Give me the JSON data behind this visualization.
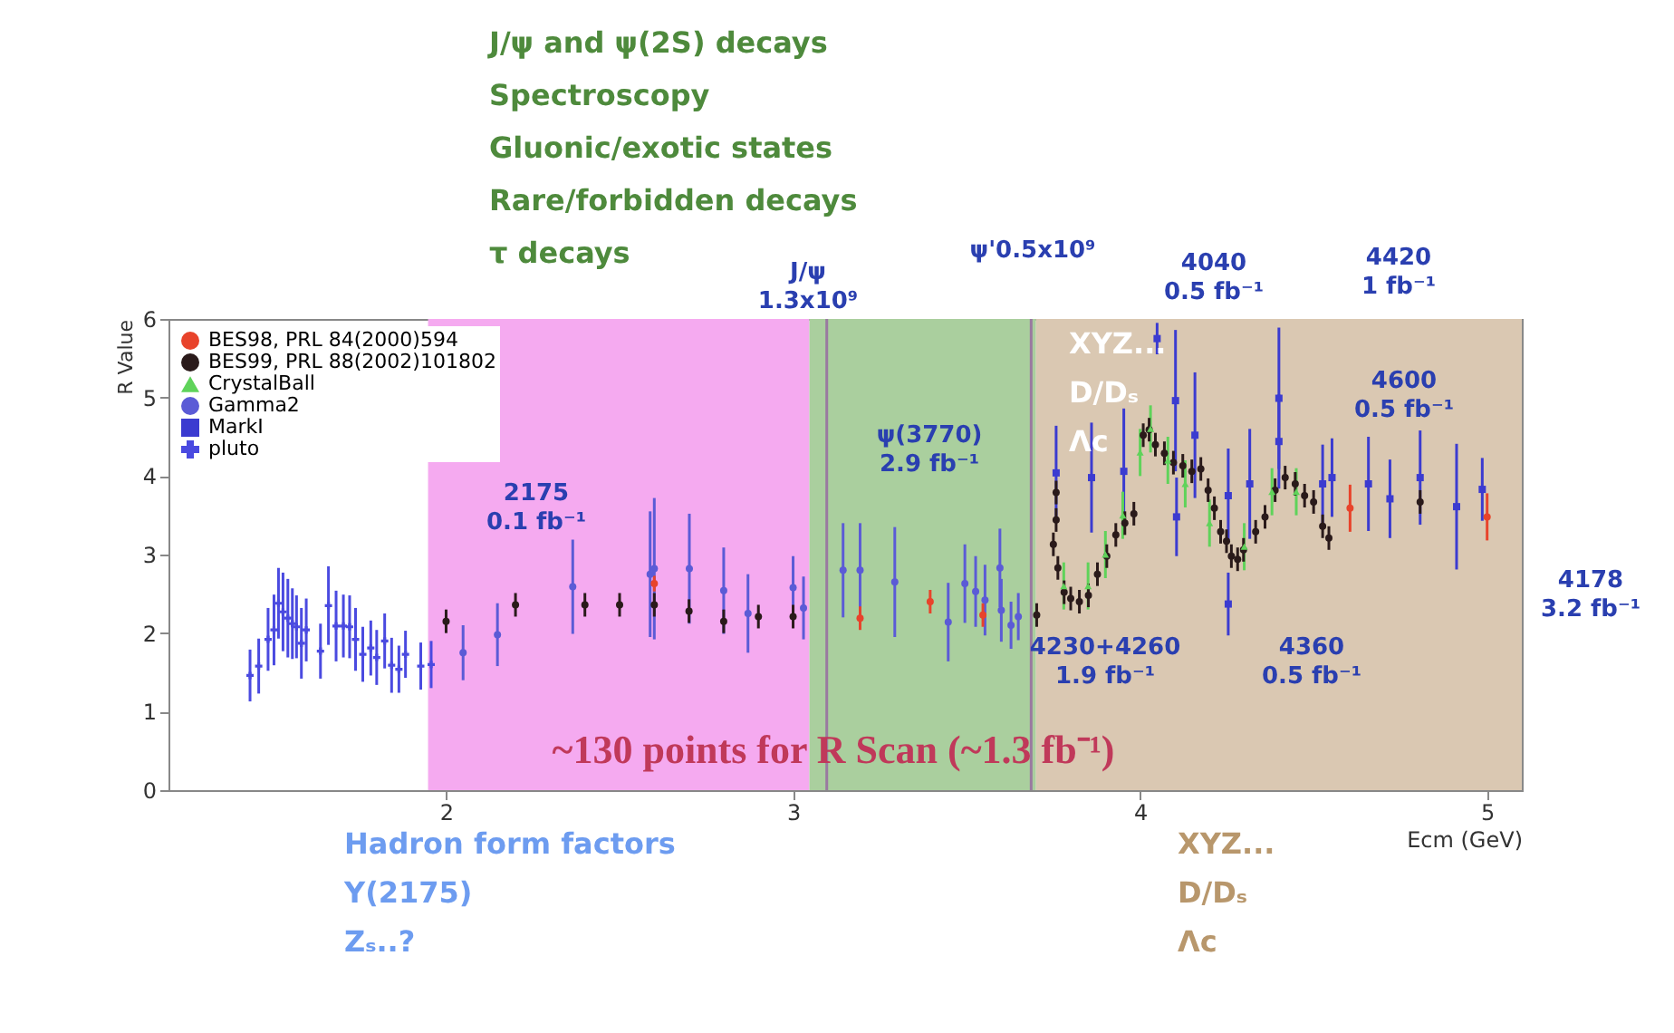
{
  "chart_data": {
    "type": "scatter",
    "xlabel": "Ecm (GeV)",
    "ylabel": "R Value",
    "xlim": [
      1.2,
      5.1
    ],
    "ylim": [
      0,
      6
    ],
    "xticks": [
      2,
      3,
      4,
      5
    ],
    "yticks": [
      0,
      1,
      2,
      3,
      4,
      5,
      6
    ],
    "grid": false,
    "legend": "top left",
    "series": [
      {
        "name": "BES98, PRL 84(2000)594",
        "color": "#e8432b",
        "marker": "circle",
        "x": [
          2.6,
          3.193,
          3.395,
          3.547,
          4.605,
          5.0
        ],
        "values": [
          2.63,
          2.19,
          2.4,
          2.23,
          3.59,
          3.48
        ],
        "errors": [
          0.1,
          0.15,
          0.15,
          0.15,
          0.3,
          0.3
        ]
      },
      {
        "name": "BES99, PRL 88(2002)101802",
        "color": "#2a1a1a",
        "marker": "circle",
        "x": [
          2.0,
          2.2,
          2.4,
          2.5,
          2.6,
          2.7,
          2.8,
          2.9,
          3.0,
          3.702,
          3.75,
          3.758,
          3.758,
          3.763,
          3.781,
          3.8,
          3.825,
          3.851,
          3.877,
          3.904,
          3.93,
          3.956,
          3.982,
          4.009,
          4.026,
          4.044,
          4.07,
          4.096,
          4.123,
          4.149,
          4.175,
          4.196,
          4.214,
          4.232,
          4.249,
          4.263,
          4.281,
          4.298,
          4.333,
          4.36,
          4.389,
          4.418,
          4.447,
          4.474,
          4.5,
          4.526,
          4.544,
          4.807
        ],
        "values": [
          2.15,
          2.36,
          2.36,
          2.36,
          2.36,
          2.28,
          2.15,
          2.21,
          2.21,
          2.23,
          3.13,
          3.79,
          3.44,
          2.83,
          2.52,
          2.44,
          2.4,
          2.48,
          2.75,
          2.98,
          3.25,
          3.4,
          3.52,
          4.52,
          4.59,
          4.4,
          4.29,
          4.17,
          4.13,
          4.06,
          4.09,
          3.82,
          3.59,
          3.29,
          3.17,
          2.98,
          2.94,
          3.06,
          3.29,
          3.48,
          3.82,
          3.98,
          3.9,
          3.75,
          3.67,
          3.36,
          3.21,
          3.67
        ],
        "errors": [
          0.15,
          0.15,
          0.15,
          0.15,
          0.15,
          0.15,
          0.15,
          0.15,
          0.15,
          0.15,
          0.15,
          0.15,
          0.15,
          0.15,
          0.15,
          0.15,
          0.15,
          0.15,
          0.15,
          0.15,
          0.15,
          0.15,
          0.15,
          0.15,
          0.15,
          0.15,
          0.15,
          0.15,
          0.15,
          0.15,
          0.15,
          0.15,
          0.15,
          0.15,
          0.15,
          0.15,
          0.15,
          0.15,
          0.15,
          0.15,
          0.15,
          0.15,
          0.15,
          0.15,
          0.15,
          0.15,
          0.15,
          0.15
        ]
      },
      {
        "name": "CrystalBall",
        "color": "#5fd35a",
        "marker": "triangle",
        "x": [
          3.78,
          3.85,
          3.9,
          3.95,
          4.0,
          4.03,
          4.08,
          4.13,
          4.2,
          4.3,
          4.38,
          4.45
        ],
        "values": [
          2.6,
          2.6,
          3.0,
          3.5,
          4.3,
          4.6,
          4.2,
          3.9,
          3.4,
          3.1,
          3.8,
          3.8
        ],
        "errors": [
          0.3,
          0.3,
          0.3,
          0.3,
          0.3,
          0.3,
          0.3,
          0.3,
          0.3,
          0.3,
          0.3,
          0.3
        ]
      },
      {
        "name": "Gamma2",
        "color": "#5b5bd6",
        "marker": "circle",
        "x": [
          2.049,
          2.148,
          2.365,
          2.588,
          2.6,
          2.701,
          2.8,
          2.87,
          3.0,
          3.03,
          3.144,
          3.193,
          3.293,
          3.447,
          3.495,
          3.526,
          3.553,
          3.596,
          3.6,
          3.628,
          3.649
        ],
        "values": [
          1.75,
          1.98,
          2.59,
          2.75,
          2.82,
          2.82,
          2.54,
          2.25,
          2.58,
          2.32,
          2.8,
          2.8,
          2.65,
          2.14,
          2.63,
          2.53,
          2.42,
          2.83,
          2.29,
          2.1,
          2.21
        ],
        "errors": [
          0.35,
          0.4,
          0.6,
          0.8,
          0.9,
          0.7,
          0.55,
          0.5,
          0.4,
          0.4,
          0.6,
          0.6,
          0.7,
          0.5,
          0.5,
          0.45,
          0.45,
          0.5,
          0.4,
          0.3,
          0.3
        ]
      },
      {
        "name": "MarkI",
        "color": "#3b3bd0",
        "marker": "square",
        "x": [
          3.758,
          3.86,
          3.953,
          4.049,
          4.102,
          4.105,
          4.158,
          4.254,
          4.254,
          4.316,
          4.4,
          4.4,
          4.526,
          4.553,
          4.658,
          4.72,
          4.807,
          4.912,
          4.986
        ],
        "values": [
          4.04,
          3.98,
          4.06,
          5.75,
          4.96,
          3.48,
          4.52,
          3.75,
          2.37,
          3.9,
          4.99,
          4.44,
          3.9,
          3.98,
          3.9,
          3.71,
          3.98,
          3.61,
          3.83
        ],
        "errors": [
          0.6,
          0.7,
          0.8,
          0.2,
          0.9,
          0.5,
          0.8,
          0.6,
          0.4,
          0.7,
          0.9,
          0.6,
          0.5,
          0.5,
          0.6,
          0.5,
          0.6,
          0.8,
          0.4
        ]
      },
      {
        "name": "pluto",
        "color": "#4a4ae0",
        "marker": "cross",
        "x": [
          1.435,
          1.46,
          1.487,
          1.504,
          1.517,
          1.53,
          1.544,
          1.557,
          1.569,
          1.583,
          1.597,
          1.638,
          1.661,
          1.683,
          1.704,
          1.722,
          1.739,
          1.76,
          1.783,
          1.8,
          1.823,
          1.843,
          1.864,
          1.883,
          1.927,
          1.957
        ],
        "values": [
          1.46,
          1.58,
          1.92,
          2.04,
          2.38,
          2.27,
          2.19,
          2.12,
          2.08,
          1.87,
          2.04,
          1.77,
          2.35,
          2.09,
          2.09,
          2.08,
          1.92,
          1.73,
          1.81,
          1.69,
          1.9,
          1.59,
          1.54,
          1.73,
          1.58,
          1.6
        ],
        "errors": [
          0.33,
          0.35,
          0.4,
          0.45,
          0.45,
          0.5,
          0.5,
          0.45,
          0.4,
          0.45,
          0.4,
          0.35,
          0.5,
          0.45,
          0.4,
          0.4,
          0.4,
          0.35,
          0.35,
          0.35,
          0.35,
          0.35,
          0.3,
          0.3,
          0.3,
          0.3
        ]
      }
    ],
    "bands": [
      {
        "axis": "x",
        "from": 1.948,
        "to": 3.047,
        "color": "#f5aaf0"
      },
      {
        "axis": "x",
        "from": 3.047,
        "to": 3.7,
        "color": "#aacf9e"
      },
      {
        "axis": "x",
        "from": 3.7,
        "to": 5.1,
        "color": "#dac8b2"
      }
    ],
    "ref_lines": [
      {
        "axis": "x",
        "value": 3.097,
        "color": "#9a7aa0"
      },
      {
        "axis": "x",
        "value": 3.686,
        "color": "#9a7aa0"
      }
    ],
    "annotations": [
      "J/ψ and ψ(2S) decays\nSpectroscopy\nGluonic/exotic states\nRare/forbidden decays\nτ decays",
      "Hadron form factors\nY(2175)\nZₛ..?",
      "XYZ...\nD/Dₛ\nΛc",
      "XYZ...\nD/Dₛ\nΛc",
      "~130 points for R Scan (~1.3 fb⁻¹)",
      "J/ψ\n1.3x10⁹",
      "ψ'0.5x10⁹",
      "4040\n0.5 fb⁻¹",
      "4420\n1 fb⁻¹",
      "4600\n0.5 fb⁻¹",
      "ψ(3770)\n2.9 fb⁻¹",
      "2175\n0.1 fb⁻¹",
      "4230+4260\n1.9 fb⁻¹",
      "4360\n0.5 fb⁻¹",
      "4178\n3.2 fb⁻¹"
    ]
  }
}
